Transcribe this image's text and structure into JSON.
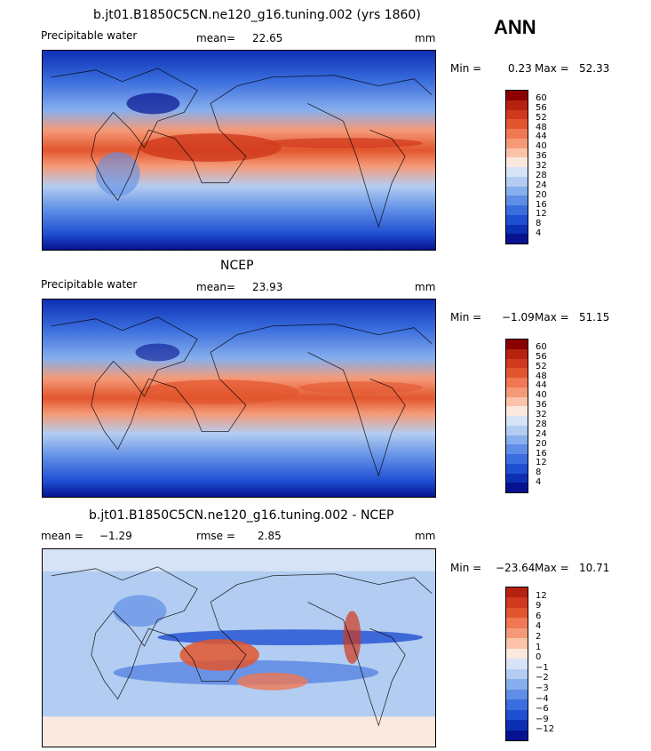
{
  "season": "ANN",
  "colors": {
    "pw_scale": [
      "#8b0000",
      "#b5220f",
      "#d0391d",
      "#e2562e",
      "#f07853",
      "#f59a78",
      "#fbc3a8",
      "#fbe9df",
      "#d6e3f6",
      "#b2cdf1",
      "#87afed",
      "#5f8ee6",
      "#3a6ddd",
      "#1f4fd2",
      "#0d2fb4",
      "#06128f"
    ],
    "diff_scale": [
      "#8b0000",
      "#b5220f",
      "#d0391d",
      "#e2562e",
      "#f07853",
      "#f59a78",
      "#fbc3a8",
      "#fbe9df",
      "#d6e3f6",
      "#b2cdf1",
      "#87afed",
      "#5f8ee6",
      "#3a6ddd",
      "#1f4fd2",
      "#0d2fb4",
      "#06128f"
    ]
  },
  "panels": [
    {
      "title": "b.jt01.B1850C5CN.ne120_g16.tuning.002 (yrs 1860)",
      "left_label": "Precipitable water",
      "stat_label": "mean=",
      "stat_value": "22.65",
      "units": "mm",
      "min_label": "Min =",
      "min_value": "0.23",
      "max_label": "Max =",
      "max_value": "52.33",
      "colorbar_labels": [
        "60",
        "56",
        "52",
        "48",
        "44",
        "40",
        "36",
        "32",
        "28",
        "24",
        "20",
        "16",
        "12",
        "8",
        "4"
      ]
    },
    {
      "title": "NCEP",
      "left_label": "Precipitable water",
      "stat_label": "mean=",
      "stat_value": "23.93",
      "units": "mm",
      "min_label": "Min =",
      "min_value": "−1.09",
      "max_label": "Max =",
      "max_value": "51.15",
      "colorbar_labels": [
        "60",
        "56",
        "52",
        "48",
        "44",
        "40",
        "36",
        "32",
        "28",
        "24",
        "20",
        "16",
        "12",
        "8",
        "4"
      ]
    },
    {
      "title": "b.jt01.B1850C5CN.ne120_g16.tuning.002 - NCEP",
      "left_label": "mean =",
      "left_value": "−1.29",
      "stat_label": "rmse =",
      "stat_value": "2.85",
      "units": "mm",
      "min_label": "Min =",
      "min_value": "−23.64",
      "max_label": "Max =",
      "max_value": "10.71",
      "colorbar_labels": [
        "12",
        "9",
        "6",
        "4",
        "2",
        "1",
        "0",
        "−1",
        "−2",
        "−3",
        "−4",
        "−6",
        "−9",
        "−12"
      ]
    }
  ]
}
